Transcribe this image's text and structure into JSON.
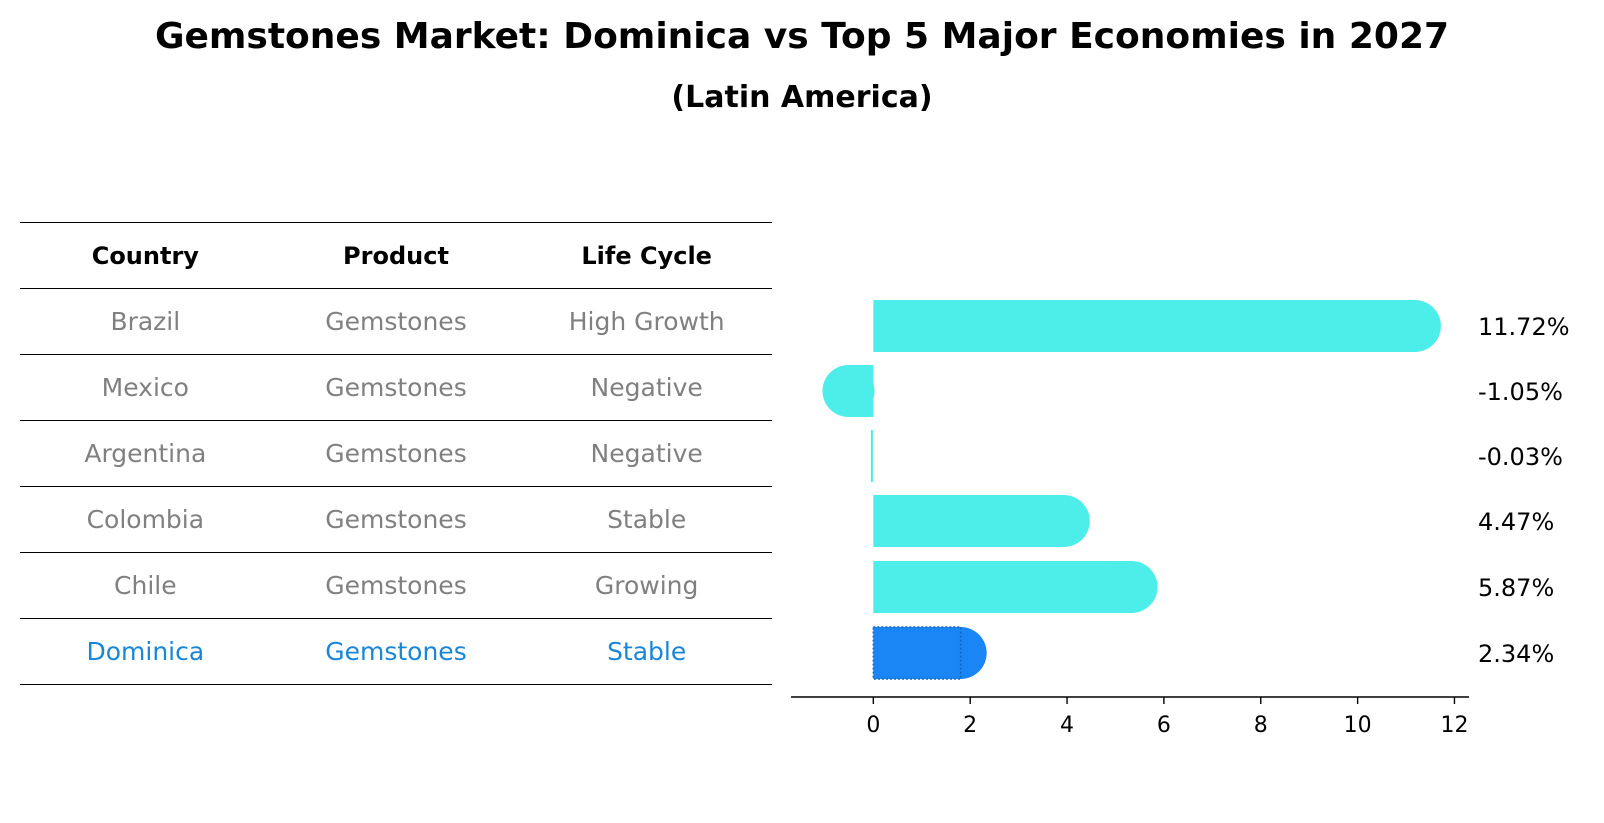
{
  "title": "Gemstones Market: Dominica vs Top 5 Major Economies in 2027",
  "subtitle": "(Latin America)",
  "table": {
    "headers": [
      "Country",
      "Product",
      "Life Cycle"
    ],
    "rows": [
      {
        "country": "Brazil",
        "product": "Gemstones",
        "life_cycle": "High Growth"
      },
      {
        "country": "Mexico",
        "product": "Gemstones",
        "life_cycle": "Negative"
      },
      {
        "country": "Argentina",
        "product": "Gemstones",
        "life_cycle": "Negative"
      },
      {
        "country": "Colombia",
        "product": "Gemstones",
        "life_cycle": "Stable"
      },
      {
        "country": "Chile",
        "product": "Gemstones",
        "life_cycle": "Growing"
      },
      {
        "country": "Dominica",
        "product": "Gemstones",
        "life_cycle": "Stable"
      }
    ]
  },
  "chart_data": {
    "type": "bar",
    "orientation": "horizontal",
    "categories": [
      "Brazil",
      "Mexico",
      "Argentina",
      "Colombia",
      "Chile",
      "Dominica"
    ],
    "values": [
      11.72,
      -1.05,
      -0.03,
      4.47,
      5.87,
      2.34
    ],
    "value_labels": [
      "11.72%",
      "-1.05%",
      "-0.03%",
      "4.47%",
      "5.87%",
      "2.34%"
    ],
    "highlight": "Dominica",
    "xlim": [
      -1.7,
      12.3
    ],
    "xticks": [
      0,
      2,
      4,
      6,
      8,
      10,
      12
    ],
    "xlabel": "",
    "ylabel": "",
    "grid": false,
    "colors": {
      "default": "#4deeea",
      "highlight": "#1a86f5",
      "highlight_row_text": "#1a86d6",
      "table_text": "#808080"
    }
  }
}
